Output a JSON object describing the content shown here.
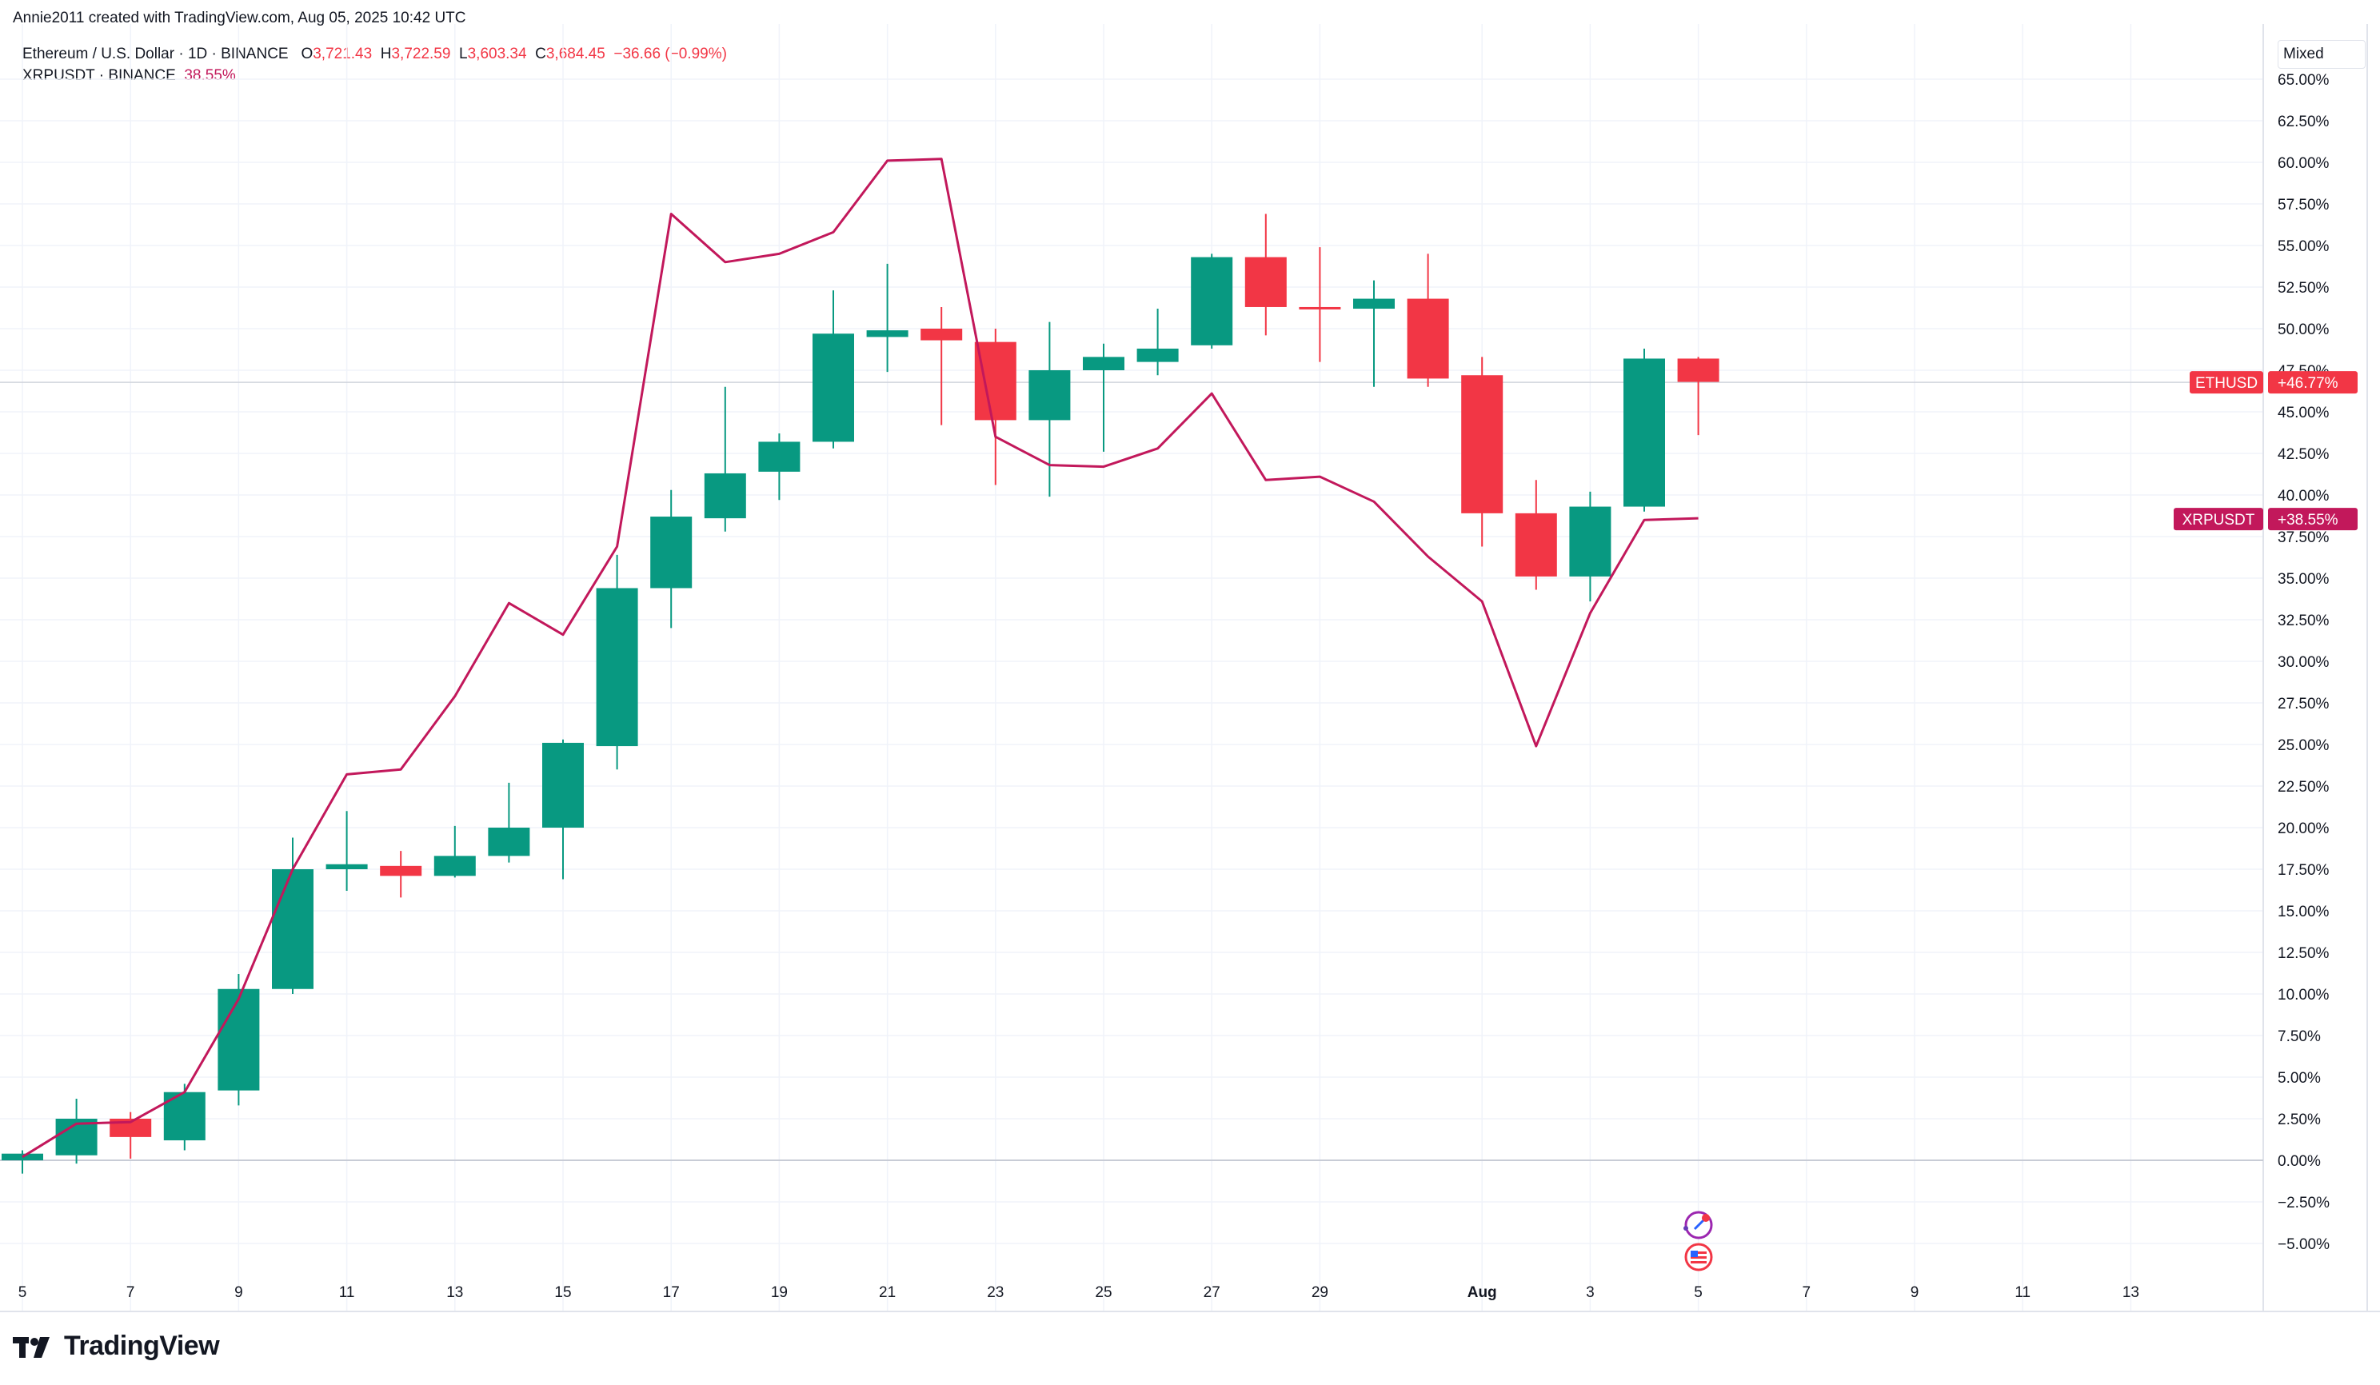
{
  "attribution": "Annie2011 created with TradingView.com, Aug 05, 2025 10:42 UTC",
  "legend": {
    "eth": {
      "label": "Ethereum / U.S. Dollar · 1D · BINANCE",
      "o_key": "O",
      "o": "3,721.43",
      "h_key": "H",
      "h": "3,722.59",
      "l_key": "L",
      "l": "3,603.34",
      "c_key": "C",
      "c": "3,684.45",
      "change": "−36.66 (−0.99%)"
    },
    "xrp": {
      "label": "XRPUSDT · BINANCE",
      "value": "38.55%"
    }
  },
  "mode_button": "Mixed",
  "brand": "TradingView",
  "colors": {
    "up": "#089981",
    "down": "#f23645",
    "xrp_line": "#c2185b",
    "grid": "#f0f3fa",
    "axis_text": "#131722"
  },
  "icons": [
    "tradingview-logo-icon",
    "news-icon",
    "flag-icon"
  ],
  "chart_data": {
    "type": "candlestick+line",
    "y_axis": {
      "unit": "%",
      "ticks": [
        "65.00%",
        "62.50%",
        "60.00%",
        "57.50%",
        "55.00%",
        "52.50%",
        "50.00%",
        "47.50%",
        "45.00%",
        "42.50%",
        "40.00%",
        "37.50%",
        "35.00%",
        "32.50%",
        "30.00%",
        "27.50%",
        "25.00%",
        "22.50%",
        "20.00%",
        "17.50%",
        "15.00%",
        "12.50%",
        "10.00%",
        "7.50%",
        "5.00%",
        "2.50%",
        "0.00%",
        "−2.50%",
        "−5.00%"
      ],
      "range": [
        -6.5,
        66
      ]
    },
    "x_axis": {
      "ticks": [
        "5",
        "7",
        "9",
        "11",
        "13",
        "15",
        "17",
        "19",
        "21",
        "23",
        "25",
        "27",
        "29",
        "Aug",
        "3",
        "5",
        "7",
        "9",
        "11",
        "13"
      ]
    },
    "price_labels": [
      {
        "name": "ETHUSD",
        "value": "+46.77%"
      },
      {
        "name": "XRPUSDT",
        "value": "+38.55%"
      }
    ],
    "eth_candles": [
      {
        "date": "2025-07-05",
        "o": 0.0,
        "h": 0.6,
        "l": -0.8,
        "c": 0.4
      },
      {
        "date": "2025-07-06",
        "o": 0.3,
        "h": 3.7,
        "l": -0.2,
        "c": 2.5
      },
      {
        "date": "2025-07-07",
        "o": 2.5,
        "h": 2.9,
        "l": 0.1,
        "c": 1.4
      },
      {
        "date": "2025-07-08",
        "o": 1.2,
        "h": 4.6,
        "l": 0.6,
        "c": 4.1
      },
      {
        "date": "2025-07-09",
        "o": 4.2,
        "h": 11.2,
        "l": 3.3,
        "c": 10.3
      },
      {
        "date": "2025-07-10",
        "o": 10.3,
        "h": 19.4,
        "l": 10.0,
        "c": 17.5
      },
      {
        "date": "2025-07-11",
        "o": 17.5,
        "h": 21.0,
        "l": 16.2,
        "c": 17.8
      },
      {
        "date": "2025-07-12",
        "o": 17.7,
        "h": 18.6,
        "l": 15.8,
        "c": 17.1
      },
      {
        "date": "2025-07-13",
        "o": 17.1,
        "h": 20.1,
        "l": 17.0,
        "c": 18.3
      },
      {
        "date": "2025-07-14",
        "o": 18.3,
        "h": 22.7,
        "l": 17.9,
        "c": 20.0
      },
      {
        "date": "2025-07-15",
        "o": 20.0,
        "h": 25.3,
        "l": 16.9,
        "c": 25.1
      },
      {
        "date": "2025-07-16",
        "o": 24.9,
        "h": 36.4,
        "l": 23.5,
        "c": 34.4
      },
      {
        "date": "2025-07-17",
        "o": 34.4,
        "h": 40.3,
        "l": 32.0,
        "c": 38.7
      },
      {
        "date": "2025-07-18",
        "o": 38.6,
        "h": 46.5,
        "l": 37.8,
        "c": 41.3
      },
      {
        "date": "2025-07-19",
        "o": 41.4,
        "h": 43.7,
        "l": 39.7,
        "c": 43.2
      },
      {
        "date": "2025-07-20",
        "o": 43.2,
        "h": 52.3,
        "l": 42.8,
        "c": 49.7
      },
      {
        "date": "2025-07-21",
        "o": 49.5,
        "h": 53.9,
        "l": 47.4,
        "c": 49.9
      },
      {
        "date": "2025-07-22",
        "o": 50.0,
        "h": 51.3,
        "l": 44.2,
        "c": 49.3
      },
      {
        "date": "2025-07-23",
        "o": 49.2,
        "h": 50.0,
        "l": 40.6,
        "c": 44.5
      },
      {
        "date": "2025-07-24",
        "o": 44.5,
        "h": 50.4,
        "l": 39.9,
        "c": 47.5
      },
      {
        "date": "2025-07-25",
        "o": 47.5,
        "h": 49.1,
        "l": 42.6,
        "c": 48.3
      },
      {
        "date": "2025-07-26",
        "o": 48.0,
        "h": 51.2,
        "l": 47.2,
        "c": 48.8
      },
      {
        "date": "2025-07-27",
        "o": 49.0,
        "h": 54.5,
        "l": 48.8,
        "c": 54.3
      },
      {
        "date": "2025-07-28",
        "o": 54.3,
        "h": 56.9,
        "l": 49.6,
        "c": 51.3
      },
      {
        "date": "2025-07-29",
        "o": 51.3,
        "h": 54.9,
        "l": 48.0,
        "c": 51.2
      },
      {
        "date": "2025-07-30",
        "o": 51.2,
        "h": 52.9,
        "l": 46.5,
        "c": 51.8
      },
      {
        "date": "2025-07-31",
        "o": 51.8,
        "h": 54.5,
        "l": 46.5,
        "c": 47.0
      },
      {
        "date": "2025-08-01",
        "o": 47.2,
        "h": 48.3,
        "l": 36.9,
        "c": 38.9
      },
      {
        "date": "2025-08-02",
        "o": 38.9,
        "h": 40.9,
        "l": 34.3,
        "c": 35.1
      },
      {
        "date": "2025-08-03",
        "o": 35.1,
        "h": 40.2,
        "l": 33.6,
        "c": 39.3
      },
      {
        "date": "2025-08-04",
        "o": 39.3,
        "h": 48.8,
        "l": 39.0,
        "c": 48.2
      },
      {
        "date": "2025-08-05",
        "o": 48.2,
        "h": 48.3,
        "l": 43.6,
        "c": 46.8
      }
    ],
    "xrp_line": [
      {
        "date": "2025-07-05",
        "v": 0.2
      },
      {
        "date": "2025-07-06",
        "v": 2.2
      },
      {
        "date": "2025-07-07",
        "v": 2.3
      },
      {
        "date": "2025-07-08",
        "v": 4.1
      },
      {
        "date": "2025-07-09",
        "v": 9.7
      },
      {
        "date": "2025-07-10",
        "v": 17.5
      },
      {
        "date": "2025-07-11",
        "v": 23.2
      },
      {
        "date": "2025-07-12",
        "v": 23.5
      },
      {
        "date": "2025-07-13",
        "v": 27.9
      },
      {
        "date": "2025-07-14",
        "v": 33.5
      },
      {
        "date": "2025-07-15",
        "v": 31.6
      },
      {
        "date": "2025-07-16",
        "v": 36.9
      },
      {
        "date": "2025-07-17",
        "v": 56.9
      },
      {
        "date": "2025-07-18",
        "v": 54.0
      },
      {
        "date": "2025-07-19",
        "v": 54.5
      },
      {
        "date": "2025-07-20",
        "v": 55.8
      },
      {
        "date": "2025-07-21",
        "v": 60.1
      },
      {
        "date": "2025-07-22",
        "v": 60.2
      },
      {
        "date": "2025-07-23",
        "v": 43.5
      },
      {
        "date": "2025-07-24",
        "v": 41.8
      },
      {
        "date": "2025-07-25",
        "v": 41.7
      },
      {
        "date": "2025-07-26",
        "v": 42.8
      },
      {
        "date": "2025-07-27",
        "v": 46.1
      },
      {
        "date": "2025-07-28",
        "v": 40.9
      },
      {
        "date": "2025-07-29",
        "v": 41.1
      },
      {
        "date": "2025-07-30",
        "v": 39.6
      },
      {
        "date": "2025-07-31",
        "v": 36.3
      },
      {
        "date": "2025-08-01",
        "v": 33.6
      },
      {
        "date": "2025-08-02",
        "v": 24.9
      },
      {
        "date": "2025-08-03",
        "v": 32.9
      },
      {
        "date": "2025-08-04",
        "v": 38.5
      },
      {
        "date": "2025-08-05",
        "v": 38.6
      }
    ],
    "grid": true,
    "legend_position": "top-left"
  }
}
